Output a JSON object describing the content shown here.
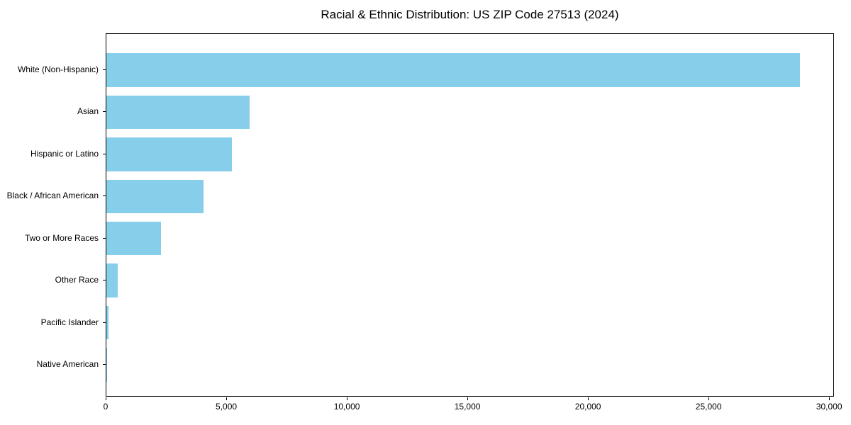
{
  "chart_data": {
    "type": "bar",
    "orientation": "horizontal",
    "title": "Racial & Ethnic Distribution: US ZIP Code 27513 (2024)",
    "categories": [
      "White (Non-Hispanic)",
      "Asian",
      "Hispanic or Latino",
      "Black / African American",
      "Two or More Races",
      "Other Race",
      "Pacific Islander",
      "Native American"
    ],
    "values": [
      28750,
      5930,
      5200,
      4030,
      2260,
      480,
      90,
      25
    ],
    "xlabel": "",
    "ylabel": "",
    "xlim": [
      0,
      30200
    ],
    "x_ticks": [
      0,
      5000,
      10000,
      15000,
      20000,
      25000,
      30000
    ],
    "x_tick_labels": [
      "0",
      "5,000",
      "10,000",
      "15,000",
      "20,000",
      "25,000",
      "30,000"
    ],
    "bar_color": "#87CEEB",
    "axis_color": "#000000",
    "background_color": "#ffffff",
    "grid": false,
    "legend": "none"
  }
}
